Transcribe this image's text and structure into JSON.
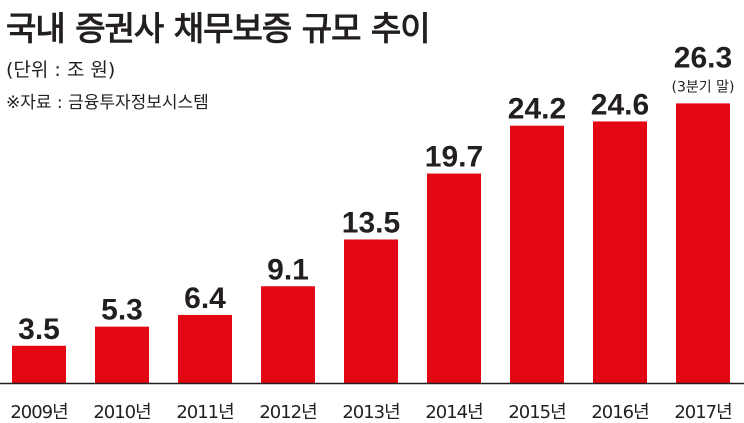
{
  "chart_data": {
    "type": "bar",
    "title": "국내 증권사 채무보증 규모 추이",
    "unit_label": "(단위 : 조 원)",
    "source": "※자료 : 금융투자정보시스템",
    "categories": [
      "2009년",
      "2010년",
      "2011년",
      "2012년",
      "2013년",
      "2014년",
      "2015년",
      "2016년",
      "2017년"
    ],
    "values": [
      3.5,
      5.3,
      6.4,
      9.1,
      13.5,
      19.7,
      24.2,
      24.6,
      26.3
    ],
    "value_labels": [
      "3.5",
      "5.3",
      "6.4",
      "9.1",
      "13.5",
      "19.7",
      "24.2",
      "24.6",
      "26.3"
    ],
    "annotations": [
      {
        "category": "2017년",
        "text": "(3분기 말)"
      }
    ],
    "ylim": [
      0,
      28.5
    ],
    "grid": false,
    "bar_color": "#e30613"
  }
}
